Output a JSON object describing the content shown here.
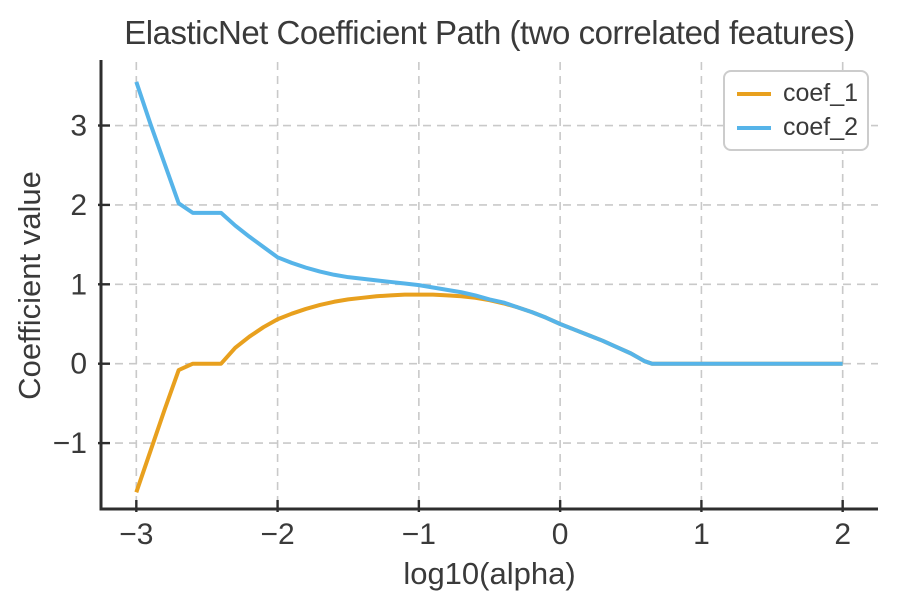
{
  "chart_data": {
    "type": "line",
    "title": "ElasticNet Coefficient Path (two correlated features)",
    "xlabel": "log10(alpha)",
    "ylabel": "Coefficient value",
    "xlim": [
      -3.25,
      2.25
    ],
    "ylim": [
      -1.83,
      3.8
    ],
    "xticks": [
      -3,
      -2,
      -1,
      0,
      1,
      2
    ],
    "yticks": [
      -1,
      0,
      1,
      2,
      3
    ],
    "grid": true,
    "grid_style": "dashed",
    "legend_position": "upper right",
    "x": [
      -3.0,
      -2.9,
      -2.8,
      -2.7,
      -2.6,
      -2.5,
      -2.4,
      -2.3,
      -2.2,
      -2.1,
      -2.0,
      -1.9,
      -1.8,
      -1.7,
      -1.6,
      -1.5,
      -1.4,
      -1.3,
      -1.2,
      -1.1,
      -1.0,
      -0.9,
      -0.8,
      -0.7,
      -0.6,
      -0.5,
      -0.4,
      -0.3,
      -0.2,
      -0.1,
      0.0,
      0.1,
      0.2,
      0.3,
      0.4,
      0.5,
      0.6,
      0.65,
      0.8,
      1.0,
      1.2,
      1.4,
      1.6,
      1.8,
      2.0
    ],
    "series": [
      {
        "name": "coef_1",
        "color": "#E8A01E",
        "values": [
          -1.62,
          -1.1,
          -0.58,
          -0.08,
          0.0,
          0.0,
          0.0,
          0.2,
          0.34,
          0.46,
          0.56,
          0.63,
          0.69,
          0.74,
          0.78,
          0.81,
          0.83,
          0.85,
          0.86,
          0.87,
          0.87,
          0.87,
          0.86,
          0.85,
          0.83,
          0.8,
          0.76,
          0.71,
          0.65,
          0.58,
          0.5,
          0.43,
          0.36,
          0.29,
          0.21,
          0.13,
          0.03,
          0.0,
          0.0,
          0.0,
          0.0,
          0.0,
          0.0,
          0.0,
          0.0
        ]
      },
      {
        "name": "coef_2",
        "color": "#56B4E9",
        "values": [
          3.55,
          3.02,
          2.52,
          2.02,
          1.9,
          1.9,
          1.9,
          1.74,
          1.6,
          1.47,
          1.34,
          1.27,
          1.21,
          1.16,
          1.12,
          1.09,
          1.07,
          1.05,
          1.03,
          1.01,
          0.99,
          0.96,
          0.93,
          0.9,
          0.86,
          0.81,
          0.77,
          0.71,
          0.65,
          0.58,
          0.5,
          0.43,
          0.36,
          0.29,
          0.21,
          0.13,
          0.03,
          0.0,
          0.0,
          0.0,
          0.0,
          0.0,
          0.0,
          0.0,
          0.0
        ]
      }
    ],
    "colors": {
      "background": "#ffffff",
      "text": "#3a3a3a",
      "axis": "#2e2e2e",
      "grid": "#c9c9c9"
    }
  }
}
